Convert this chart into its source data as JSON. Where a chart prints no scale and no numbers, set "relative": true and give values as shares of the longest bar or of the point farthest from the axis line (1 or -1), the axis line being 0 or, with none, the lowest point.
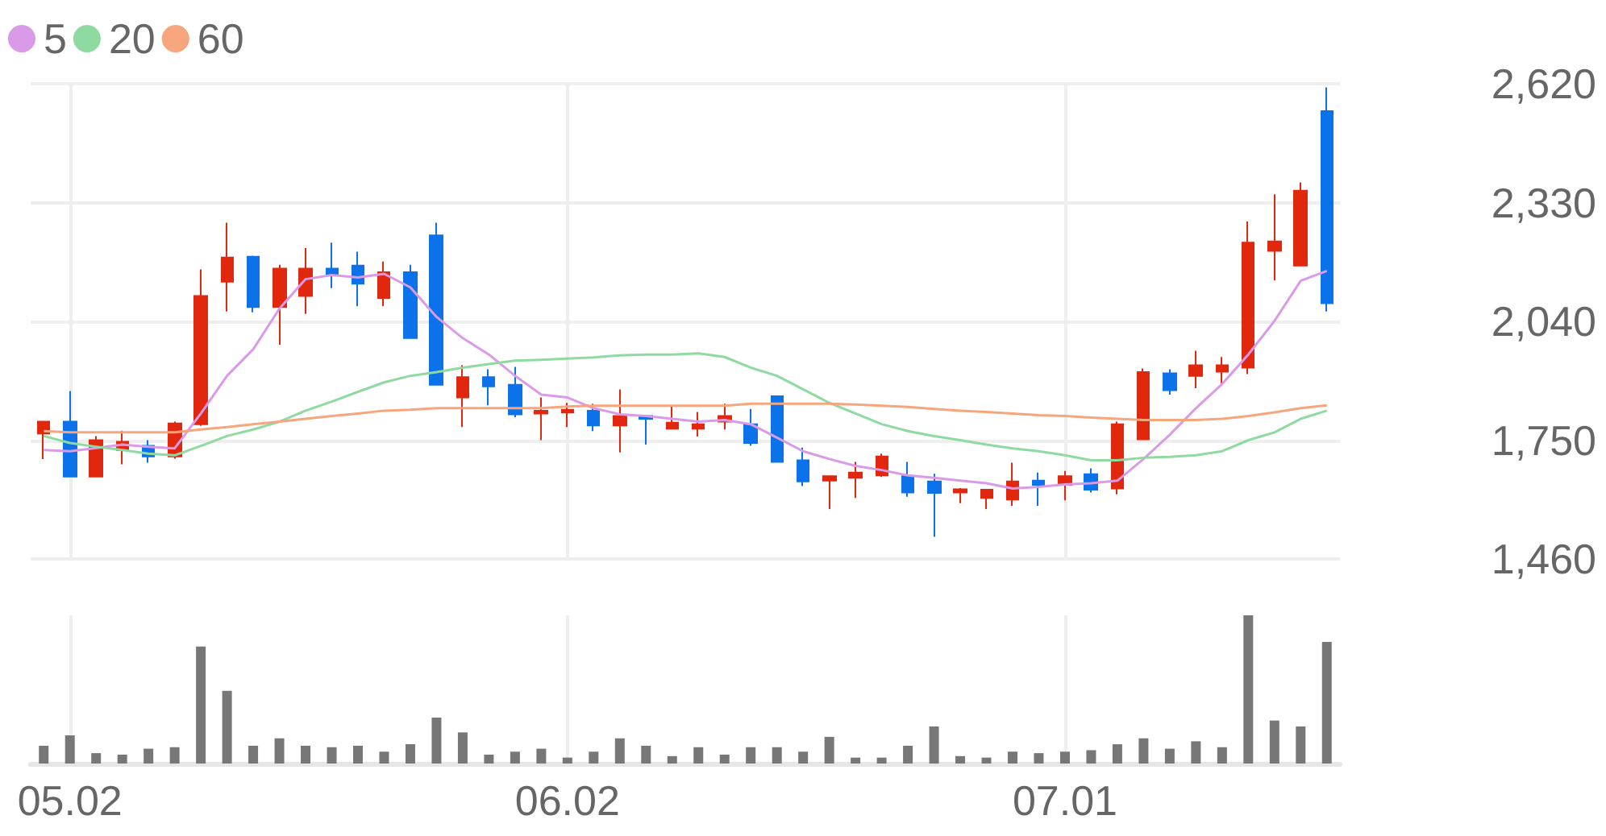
{
  "chart_data": [
    {
      "type": "candlestick",
      "categories": [
        null,
        "05.02",
        null,
        null,
        null,
        null,
        null,
        null,
        null,
        null,
        null,
        null,
        null,
        null,
        null,
        null,
        null,
        null,
        null,
        null,
        "06.02",
        null,
        null,
        null,
        null,
        null,
        null,
        null,
        null,
        null,
        null,
        null,
        null,
        null,
        null,
        null,
        null,
        null,
        null,
        "07.01",
        null,
        null,
        null,
        null,
        null,
        null,
        null,
        null,
        null,
        null
      ],
      "ohlc": [
        [
          1766,
          1796,
          1704,
          1795
        ],
        [
          1795,
          1870,
          1661,
          1661
        ],
        [
          1661,
          1760,
          1661,
          1750
        ],
        [
          1726,
          1773,
          1691,
          1746
        ],
        [
          1736,
          1750,
          1695,
          1710
        ],
        [
          1710,
          1795,
          1705,
          1791
        ],
        [
          1789,
          2167,
          1785,
          2102
        ],
        [
          2137,
          2281,
          2064,
          2196
        ],
        [
          2198,
          2200,
          2062,
          2075
        ],
        [
          2075,
          2178,
          1983,
          2169
        ],
        [
          2102,
          2219,
          2058,
          2169
        ],
        [
          2169,
          2232,
          2121,
          2156
        ],
        [
          2176,
          2210,
          2077,
          2132
        ],
        [
          2097,
          2186,
          2077,
          2160
        ],
        [
          2160,
          2178,
          1999,
          1999
        ],
        [
          2250,
          2281,
          1885,
          1885
        ],
        [
          1854,
          1933,
          1782,
          1904
        ],
        [
          1904,
          1923,
          1835,
          1881
        ],
        [
          1885,
          1929,
          1806,
          1813
        ],
        [
          1815,
          1854,
          1750,
          1822
        ],
        [
          1818,
          1841,
          1782,
          1824
        ],
        [
          1822,
          1839,
          1772,
          1786
        ],
        [
          1786,
          1874,
          1720,
          1809
        ],
        [
          1809,
          1811,
          1739,
          1802
        ],
        [
          1778,
          1835,
          1778,
          1793
        ],
        [
          1778,
          1819,
          1759,
          1789
        ],
        [
          1795,
          1839,
          1776,
          1809
        ],
        [
          1789,
          1826,
          1736,
          1743
        ],
        [
          1857,
          1859,
          1697,
          1697
        ],
        [
          1701,
          1732,
          1638,
          1649
        ],
        [
          1651,
          1662,
          1582,
          1662
        ],
        [
          1658,
          1697,
          1609,
          1671
        ],
        [
          1664,
          1717,
          1660,
          1710
        ],
        [
          1662,
          1697,
          1612,
          1622
        ],
        [
          1649,
          1668,
          1514,
          1621
        ],
        [
          1622,
          1633,
          1596,
          1630
        ],
        [
          1609,
          1629,
          1582,
          1629
        ],
        [
          1605,
          1695,
          1590,
          1649
        ],
        [
          1651,
          1671,
          1590,
          1641
        ],
        [
          1641,
          1675,
          1603,
          1662
        ],
        [
          1667,
          1681,
          1622,
          1629
        ],
        [
          1632,
          1795,
          1618,
          1789
        ],
        [
          1752,
          1925,
          1750,
          1916
        ],
        [
          1913,
          1923,
          1861,
          1872
        ],
        [
          1907,
          1968,
          1877,
          1933
        ],
        [
          1917,
          1953,
          1887,
          1933
        ],
        [
          1927,
          2284,
          1911,
          2232
        ],
        [
          2212,
          2350,
          2140,
          2235
        ],
        [
          2176,
          2379,
          2176,
          2359
        ],
        [
          2553,
          2611,
          2064,
          2084
        ]
      ],
      "colors": [
        "#e1280e",
        "#0b72ea",
        "#e1280e",
        "#e1280e",
        "#0b72ea",
        "#e1280e",
        "#e1280e",
        "#e1280e",
        "#0b72ea",
        "#e1280e",
        "#e1280e",
        "#0b72ea",
        "#0b72ea",
        "#e1280e",
        "#0b72ea",
        "#0b72ea",
        "#e1280e",
        "#0b72ea",
        "#0b72ea",
        "#e1280e",
        "#e1280e",
        "#0b72ea",
        "#e1280e",
        "#0b72ea",
        "#e1280e",
        "#e1280e",
        "#e1280e",
        "#0b72ea",
        "#0b72ea",
        "#0b72ea",
        "#e1280e",
        "#e1280e",
        "#e1280e",
        "#0b72ea",
        "#0b72ea",
        "#e1280e",
        "#e1280e",
        "#e1280e",
        "#0b72ea",
        "#e1280e",
        "#0b72ea",
        "#e1280e",
        "#e1280e",
        "#0b72ea",
        "#e1280e",
        "#e1280e",
        "#e1280e",
        "#e1280e",
        "#e1280e",
        "#0b72ea"
      ],
      "series": [
        {
          "type": "line",
          "name": "5",
          "color": "#d99be8",
          "values": [
            1726,
            1723,
            1731,
            1739,
            1734,
            1730,
            1815,
            1907,
            1972,
            2071,
            2143,
            2153,
            2147,
            2156,
            2123,
            2051,
            1999,
            1959,
            1907,
            1861,
            1854,
            1828,
            1813,
            1809,
            1802,
            1795,
            1799,
            1789,
            1756,
            1723,
            1704,
            1687,
            1677,
            1664,
            1658,
            1651,
            1645,
            1632,
            1636,
            1642,
            1645,
            1651,
            1704,
            1763,
            1828,
            1887,
            1959,
            2041,
            2139,
            2163
          ]
        },
        {
          "type": "line",
          "name": "20",
          "color": "#8fdaa0",
          "values": [
            1760,
            1743,
            1734,
            1726,
            1717,
            1713,
            1736,
            1760,
            1776,
            1795,
            1822,
            1844,
            1868,
            1891,
            1907,
            1916,
            1927,
            1936,
            1944,
            1946,
            1949,
            1952,
            1957,
            1959,
            1959,
            1962,
            1953,
            1927,
            1907,
            1874,
            1841,
            1815,
            1789,
            1772,
            1760,
            1750,
            1739,
            1730,
            1723,
            1713,
            1701,
            1701,
            1707,
            1709,
            1713,
            1723,
            1750,
            1769,
            1802,
            1822
          ]
        },
        {
          "type": "line",
          "name": "60",
          "color": "#f6a57c",
          "values": [
            1772,
            1769,
            1769,
            1769,
            1769,
            1769,
            1776,
            1782,
            1789,
            1795,
            1802,
            1809,
            1815,
            1822,
            1824,
            1828,
            1828,
            1828,
            1828,
            1828,
            1832,
            1834,
            1834,
            1834,
            1834,
            1834,
            1834,
            1839,
            1839,
            1839,
            1839,
            1837,
            1834,
            1831,
            1826,
            1822,
            1819,
            1815,
            1811,
            1809,
            1805,
            1802,
            1799,
            1799,
            1799,
            1802,
            1809,
            1818,
            1828,
            1835
          ]
        }
      ],
      "ylim": [
        1460,
        2620
      ],
      "yticks": [
        {
          "value": 1460,
          "label": "1,460"
        },
        {
          "value": 1750,
          "label": "1,750"
        },
        {
          "value": 2040,
          "label": "2,040"
        },
        {
          "value": 2330,
          "label": "2,330"
        },
        {
          "value": 2620,
          "label": "2,620"
        }
      ],
      "grid": true,
      "legend": "top left",
      "marker": "none",
      "tick_labels": "y"
    },
    {
      "type": "bar",
      "categories": [
        null,
        "05.02",
        null,
        null,
        null,
        null,
        null,
        null,
        null,
        null,
        null,
        null,
        null,
        null,
        null,
        null,
        null,
        null,
        null,
        null,
        "06.02",
        null,
        null,
        null,
        null,
        null,
        null,
        null,
        null,
        null,
        null,
        null,
        null,
        null,
        null,
        null,
        null,
        null,
        null,
        "07.01",
        null,
        null,
        null,
        null,
        null,
        null,
        null,
        null,
        null,
        null
      ],
      "values": [
        0.12,
        0.19,
        0.07,
        0.06,
        0.1,
        0.11,
        0.79,
        0.49,
        0.12,
        0.17,
        0.12,
        0.11,
        0.12,
        0.08,
        0.13,
        0.31,
        0.21,
        0.06,
        0.08,
        0.1,
        0.04,
        0.08,
        0.17,
        0.12,
        0.05,
        0.11,
        0.06,
        0.11,
        0.11,
        0.08,
        0.18,
        0.04,
        0.04,
        0.12,
        0.25,
        0.05,
        0.04,
        0.08,
        0.07,
        0.08,
        0.09,
        0.13,
        0.17,
        0.1,
        0.15,
        0.11,
        1,
        0.29,
        0.25,
        0.82
      ],
      "color": "#777777",
      "relative": true,
      "grid": "x"
    }
  ]
}
